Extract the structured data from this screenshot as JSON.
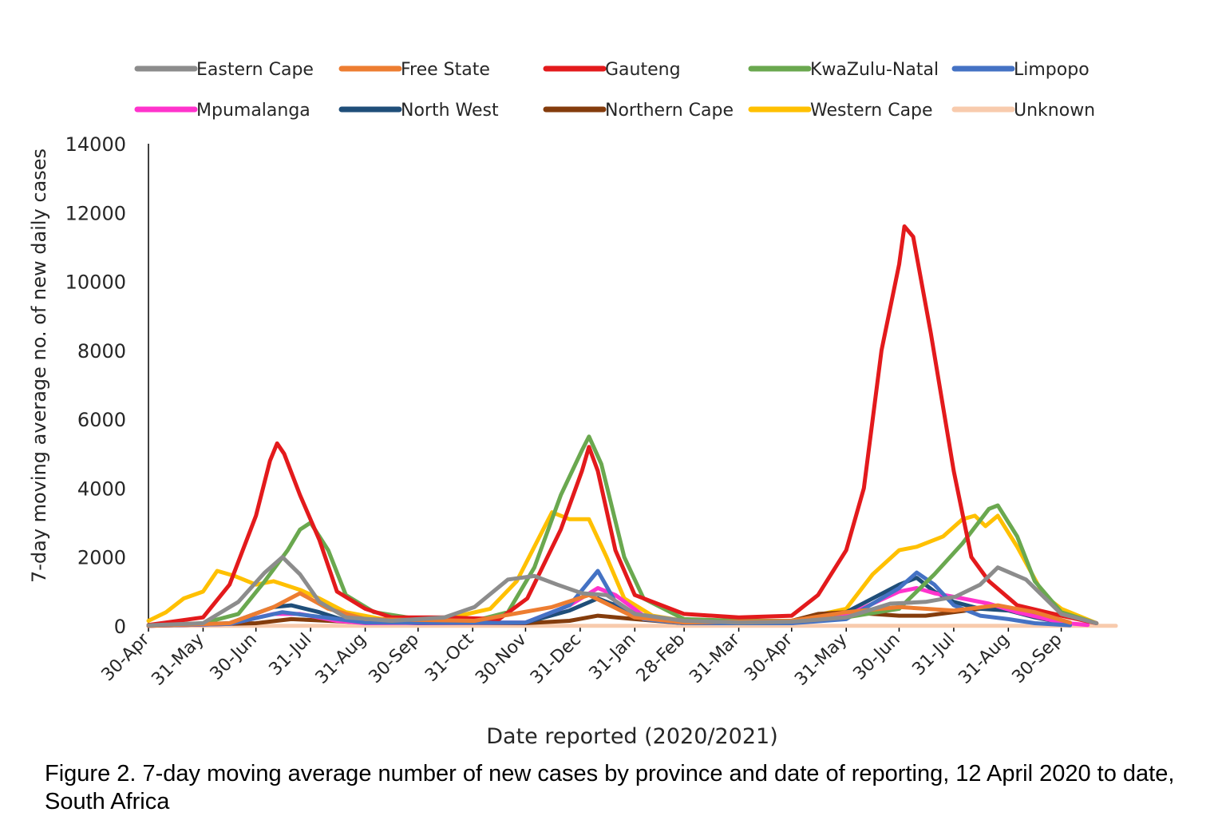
{
  "caption": "Figure 2. 7-day moving average number of new cases by province and date of reporting, 12 April 2020 to date, South Africa",
  "chart_data": {
    "type": "line",
    "title": "",
    "xlabel": "Date reported (2020/2021)",
    "ylabel": "7-day moving average no. of new daily cases",
    "ylim": [
      0,
      14000
    ],
    "yticks": [
      0,
      2000,
      4000,
      6000,
      8000,
      10000,
      12000,
      14000
    ],
    "xlim": [
      "2020-04-30",
      "2021-10-31"
    ],
    "xticks": [
      {
        "date": "2020-04-30",
        "label": "30-Apr"
      },
      {
        "date": "2020-05-31",
        "label": "31-May"
      },
      {
        "date": "2020-06-30",
        "label": "30-Jun"
      },
      {
        "date": "2020-07-31",
        "label": "31-Jul"
      },
      {
        "date": "2020-08-31",
        "label": "31-Aug"
      },
      {
        "date": "2020-09-30",
        "label": "30-Sep"
      },
      {
        "date": "2020-10-31",
        "label": "31-Oct"
      },
      {
        "date": "2020-11-30",
        "label": "30-Nov"
      },
      {
        "date": "2020-12-31",
        "label": "31-Dec"
      },
      {
        "date": "2021-01-31",
        "label": "31-Jan"
      },
      {
        "date": "2021-02-28",
        "label": "28-Feb"
      },
      {
        "date": "2021-03-31",
        "label": "31-Mar"
      },
      {
        "date": "2021-04-30",
        "label": "30-Apr"
      },
      {
        "date": "2021-05-31",
        "label": "31-May"
      },
      {
        "date": "2021-06-30",
        "label": "30-Jun"
      },
      {
        "date": "2021-07-31",
        "label": "31-Jul"
      },
      {
        "date": "2021-08-31",
        "label": "31-Aug"
      },
      {
        "date": "2021-09-30",
        "label": "30-Sep"
      }
    ],
    "grid": false,
    "legend_position": "top",
    "series": [
      {
        "name": "Eastern Cape",
        "color": "#8c8c8c",
        "points": [
          [
            "2020-04-30",
            20
          ],
          [
            "2020-05-31",
            80
          ],
          [
            "2020-06-20",
            700
          ],
          [
            "2020-07-05",
            1550
          ],
          [
            "2020-07-15",
            2000
          ],
          [
            "2020-07-25",
            1500
          ],
          [
            "2020-08-05",
            700
          ],
          [
            "2020-08-20",
            250
          ],
          [
            "2020-09-15",
            150
          ],
          [
            "2020-10-15",
            250
          ],
          [
            "2020-11-01",
            550
          ],
          [
            "2020-11-20",
            1350
          ],
          [
            "2020-12-05",
            1450
          ],
          [
            "2020-12-18",
            1200
          ],
          [
            "2021-01-01",
            950
          ],
          [
            "2021-01-15",
            900
          ],
          [
            "2021-01-31",
            350
          ],
          [
            "2021-02-28",
            150
          ],
          [
            "2021-03-31",
            100
          ],
          [
            "2021-04-30",
            120
          ],
          [
            "2021-05-31",
            250
          ],
          [
            "2021-06-25",
            650
          ],
          [
            "2021-07-15",
            700
          ],
          [
            "2021-08-01",
            850
          ],
          [
            "2021-08-15",
            1200
          ],
          [
            "2021-08-25",
            1700
          ],
          [
            "2021-09-10",
            1350
          ],
          [
            "2021-09-30",
            350
          ],
          [
            "2021-10-20",
            80
          ]
        ]
      },
      {
        "name": "Free State",
        "color": "#ed7d31",
        "points": [
          [
            "2020-04-30",
            5
          ],
          [
            "2020-06-15",
            80
          ],
          [
            "2020-07-10",
            550
          ],
          [
            "2020-07-25",
            950
          ],
          [
            "2020-08-10",
            500
          ],
          [
            "2020-08-31",
            200
          ],
          [
            "2020-11-01",
            150
          ],
          [
            "2020-12-15",
            550
          ],
          [
            "2021-01-05",
            900
          ],
          [
            "2021-01-31",
            250
          ],
          [
            "2021-02-28",
            100
          ],
          [
            "2021-04-30",
            150
          ],
          [
            "2021-05-31",
            400
          ],
          [
            "2021-06-30",
            550
          ],
          [
            "2021-07-31",
            450
          ],
          [
            "2021-08-25",
            600
          ],
          [
            "2021-09-15",
            400
          ],
          [
            "2021-10-05",
            100
          ]
        ]
      },
      {
        "name": "Gauteng",
        "color": "#e31a1c",
        "points": [
          [
            "2020-04-30",
            30
          ],
          [
            "2020-05-31",
            250
          ],
          [
            "2020-06-15",
            1200
          ],
          [
            "2020-06-30",
            3200
          ],
          [
            "2020-07-08",
            4800
          ],
          [
            "2020-07-12",
            5300
          ],
          [
            "2020-07-16",
            5000
          ],
          [
            "2020-07-25",
            3800
          ],
          [
            "2020-08-05",
            2500
          ],
          [
            "2020-08-15",
            1000
          ],
          [
            "2020-08-31",
            500
          ],
          [
            "2020-09-15",
            250
          ],
          [
            "2020-10-15",
            250
          ],
          [
            "2020-11-15",
            200
          ],
          [
            "2020-12-01",
            800
          ],
          [
            "2020-12-20",
            2800
          ],
          [
            "2021-01-01",
            4500
          ],
          [
            "2021-01-05",
            5200
          ],
          [
            "2021-01-10",
            4500
          ],
          [
            "2021-01-20",
            2200
          ],
          [
            "2021-01-31",
            900
          ],
          [
            "2021-02-28",
            350
          ],
          [
            "2021-03-31",
            250
          ],
          [
            "2021-04-30",
            300
          ],
          [
            "2021-05-15",
            900
          ],
          [
            "2021-05-31",
            2200
          ],
          [
            "2021-06-10",
            4000
          ],
          [
            "2021-06-20",
            8000
          ],
          [
            "2021-06-30",
            10500
          ],
          [
            "2021-07-03",
            11600
          ],
          [
            "2021-07-08",
            11300
          ],
          [
            "2021-07-18",
            8500
          ],
          [
            "2021-07-31",
            4500
          ],
          [
            "2021-08-10",
            2000
          ],
          [
            "2021-08-20",
            1300
          ],
          [
            "2021-09-05",
            600
          ],
          [
            "2021-09-30",
            300
          ],
          [
            "2021-10-20",
            80
          ]
        ]
      },
      {
        "name": "KwaZulu-Natal",
        "color": "#6aa84f",
        "points": [
          [
            "2020-04-30",
            20
          ],
          [
            "2020-05-31",
            80
          ],
          [
            "2020-06-20",
            350
          ],
          [
            "2020-07-05",
            1300
          ],
          [
            "2020-07-18",
            2200
          ],
          [
            "2020-07-25",
            2800
          ],
          [
            "2020-07-31",
            3000
          ],
          [
            "2020-08-10",
            2200
          ],
          [
            "2020-08-20",
            900
          ],
          [
            "2020-09-05",
            400
          ],
          [
            "2020-09-30",
            200
          ],
          [
            "2020-11-01",
            150
          ],
          [
            "2020-11-20",
            400
          ],
          [
            "2020-12-05",
            1700
          ],
          [
            "2020-12-20",
            3800
          ],
          [
            "2021-01-01",
            5100
          ],
          [
            "2021-01-05",
            5500
          ],
          [
            "2021-01-12",
            4700
          ],
          [
            "2021-01-25",
            2000
          ],
          [
            "2021-02-05",
            800
          ],
          [
            "2021-02-28",
            200
          ],
          [
            "2021-03-31",
            150
          ],
          [
            "2021-04-30",
            150
          ],
          [
            "2021-05-31",
            250
          ],
          [
            "2021-06-30",
            500
          ],
          [
            "2021-07-20",
            1500
          ],
          [
            "2021-08-05",
            2400
          ],
          [
            "2021-08-20",
            3400
          ],
          [
            "2021-08-25",
            3500
          ],
          [
            "2021-09-05",
            2600
          ],
          [
            "2021-09-15",
            1300
          ],
          [
            "2021-09-30",
            400
          ],
          [
            "2021-10-20",
            80
          ]
        ]
      },
      {
        "name": "Limpopo",
        "color": "#4472c4",
        "points": [
          [
            "2020-04-30",
            5
          ],
          [
            "2020-06-15",
            60
          ],
          [
            "2020-07-15",
            400
          ],
          [
            "2020-07-31",
            300
          ],
          [
            "2020-08-31",
            100
          ],
          [
            "2020-11-30",
            100
          ],
          [
            "2020-12-25",
            600
          ],
          [
            "2021-01-10",
            1600
          ],
          [
            "2021-01-20",
            700
          ],
          [
            "2021-02-05",
            200
          ],
          [
            "2021-02-28",
            80
          ],
          [
            "2021-04-30",
            80
          ],
          [
            "2021-05-31",
            200
          ],
          [
            "2021-06-30",
            1100
          ],
          [
            "2021-07-10",
            1550
          ],
          [
            "2021-07-20",
            1200
          ],
          [
            "2021-07-31",
            600
          ],
          [
            "2021-08-15",
            300
          ],
          [
            "2021-08-31",
            200
          ],
          [
            "2021-09-15",
            80
          ],
          [
            "2021-10-05",
            20
          ]
        ]
      },
      {
        "name": "Mpumalanga",
        "color": "#ff33cc",
        "points": [
          [
            "2020-04-30",
            5
          ],
          [
            "2020-06-15",
            60
          ],
          [
            "2020-07-10",
            350
          ],
          [
            "2020-07-25",
            350
          ],
          [
            "2020-08-15",
            150
          ],
          [
            "2020-08-31",
            80
          ],
          [
            "2020-11-30",
            100
          ],
          [
            "2020-12-25",
            600
          ],
          [
            "2021-01-10",
            1100
          ],
          [
            "2021-01-20",
            900
          ],
          [
            "2021-02-05",
            300
          ],
          [
            "2021-02-28",
            80
          ],
          [
            "2021-04-30",
            80
          ],
          [
            "2021-05-31",
            300
          ],
          [
            "2021-06-30",
            1000
          ],
          [
            "2021-07-10",
            1100
          ],
          [
            "2021-07-20",
            950
          ],
          [
            "2021-08-05",
            800
          ],
          [
            "2021-08-20",
            650
          ],
          [
            "2021-09-05",
            400
          ],
          [
            "2021-09-30",
            100
          ],
          [
            "2021-10-15",
            30
          ]
        ]
      },
      {
        "name": "North West",
        "color": "#1f4e79",
        "points": [
          [
            "2020-04-30",
            5
          ],
          [
            "2020-06-15",
            80
          ],
          [
            "2020-07-10",
            550
          ],
          [
            "2020-07-20",
            600
          ],
          [
            "2020-08-05",
            400
          ],
          [
            "2020-08-20",
            150
          ],
          [
            "2020-09-30",
            80
          ],
          [
            "2020-11-30",
            100
          ],
          [
            "2020-12-25",
            450
          ],
          [
            "2021-01-10",
            800
          ],
          [
            "2021-01-20",
            600
          ],
          [
            "2021-02-05",
            200
          ],
          [
            "2021-02-28",
            80
          ],
          [
            "2021-04-30",
            80
          ],
          [
            "2021-05-31",
            400
          ],
          [
            "2021-06-30",
            1200
          ],
          [
            "2021-07-10",
            1400
          ],
          [
            "2021-07-20",
            1000
          ],
          [
            "2021-07-31",
            700
          ],
          [
            "2021-08-15",
            500
          ],
          [
            "2021-08-31",
            450
          ],
          [
            "2021-09-15",
            250
          ],
          [
            "2021-10-05",
            50
          ]
        ]
      },
      {
        "name": "Northern Cape",
        "color": "#843c0c",
        "points": [
          [
            "2020-04-30",
            5
          ],
          [
            "2020-06-30",
            80
          ],
          [
            "2020-07-20",
            200
          ],
          [
            "2020-08-10",
            150
          ],
          [
            "2020-08-31",
            100
          ],
          [
            "2020-11-30",
            80
          ],
          [
            "2020-12-25",
            150
          ],
          [
            "2021-01-10",
            300
          ],
          [
            "2021-01-31",
            200
          ],
          [
            "2021-02-28",
            80
          ],
          [
            "2021-04-30",
            150
          ],
          [
            "2021-05-15",
            350
          ],
          [
            "2021-05-31",
            400
          ],
          [
            "2021-06-15",
            350
          ],
          [
            "2021-06-30",
            300
          ],
          [
            "2021-07-15",
            300
          ],
          [
            "2021-07-31",
            400
          ],
          [
            "2021-08-15",
            500
          ],
          [
            "2021-08-31",
            500
          ],
          [
            "2021-09-15",
            350
          ],
          [
            "2021-10-05",
            80
          ]
        ]
      },
      {
        "name": "Western Cape",
        "color": "#ffc000",
        "points": [
          [
            "2020-04-30",
            150
          ],
          [
            "2020-05-10",
            400
          ],
          [
            "2020-05-20",
            800
          ],
          [
            "2020-05-31",
            1000
          ],
          [
            "2020-06-08",
            1600
          ],
          [
            "2020-06-18",
            1450
          ],
          [
            "2020-06-30",
            1200
          ],
          [
            "2020-07-10",
            1300
          ],
          [
            "2020-07-25",
            1050
          ],
          [
            "2020-08-05",
            800
          ],
          [
            "2020-08-20",
            400
          ],
          [
            "2020-09-10",
            200
          ],
          [
            "2020-10-15",
            200
          ],
          [
            "2020-11-10",
            500
          ],
          [
            "2020-11-25",
            1300
          ],
          [
            "2020-12-08",
            2600
          ],
          [
            "2020-12-15",
            3300
          ],
          [
            "2020-12-25",
            3100
          ],
          [
            "2021-01-05",
            3100
          ],
          [
            "2021-01-15",
            2000
          ],
          [
            "2021-01-25",
            800
          ],
          [
            "2021-02-10",
            300
          ],
          [
            "2021-02-28",
            150
          ],
          [
            "2021-03-31",
            150
          ],
          [
            "2021-04-30",
            150
          ],
          [
            "2021-05-31",
            500
          ],
          [
            "2021-06-15",
            1500
          ],
          [
            "2021-06-30",
            2200
          ],
          [
            "2021-07-10",
            2300
          ],
          [
            "2021-07-25",
            2600
          ],
          [
            "2021-08-05",
            3100
          ],
          [
            "2021-08-12",
            3200
          ],
          [
            "2021-08-18",
            2900
          ],
          [
            "2021-08-25",
            3200
          ],
          [
            "2021-09-05",
            2300
          ],
          [
            "2021-09-20",
            900
          ],
          [
            "2021-09-30",
            500
          ],
          [
            "2021-10-20",
            80
          ]
        ]
      },
      {
        "name": "Unknown",
        "color": "#f8cbad",
        "points": [
          [
            "2020-04-30",
            5
          ],
          [
            "2021-10-31",
            5
          ]
        ]
      }
    ]
  }
}
